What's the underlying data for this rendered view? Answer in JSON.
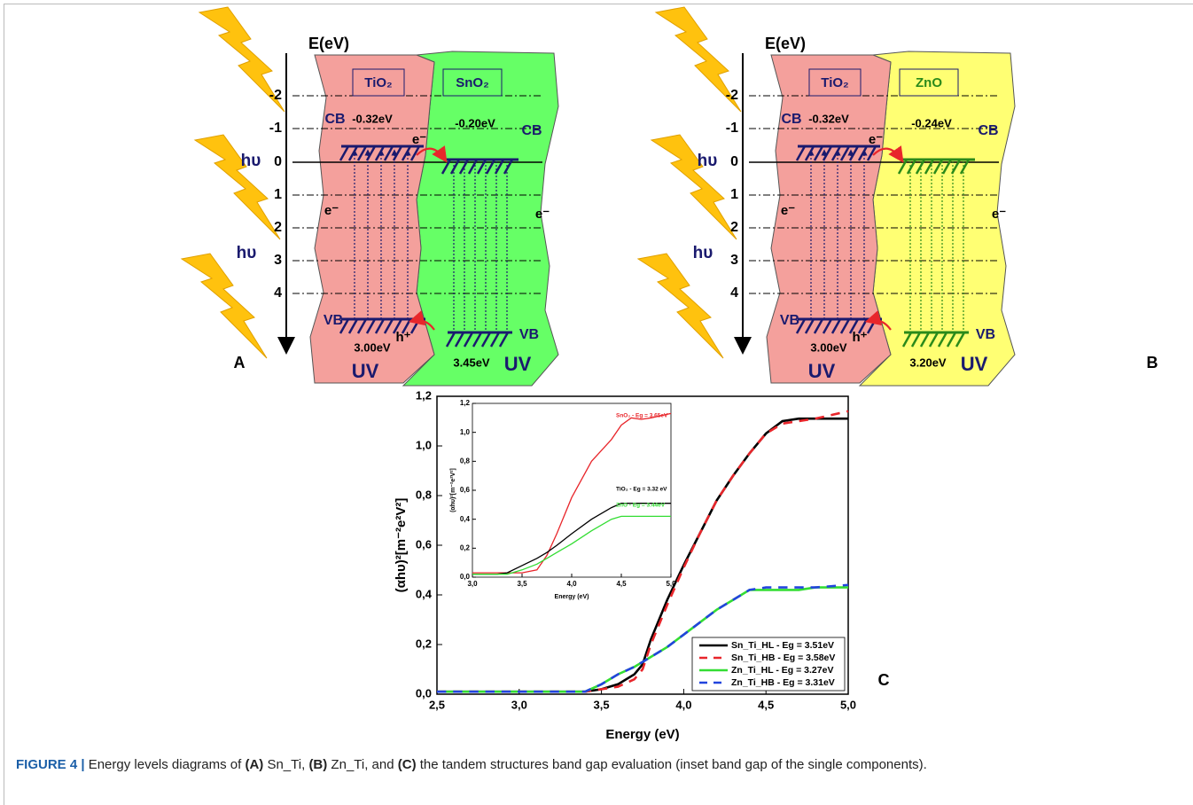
{
  "diagrams": [
    {
      "axis_label": "E(eV)",
      "levels": [
        "-2",
        "-1",
        "0",
        "1",
        "2",
        "3",
        "4"
      ],
      "photon_labels": [
        "hυ",
        "hυ"
      ],
      "left_material": "TiO₂",
      "right_material": "SnO₂",
      "left_cb": "CB",
      "left_cb_energy": "-0.32eV",
      "right_cb": "CB",
      "right_cb_energy": "-0.20eV",
      "transfer_electron": "e⁻",
      "left_electron": "e⁻",
      "right_electron": "e⁻",
      "left_vb": "VB",
      "left_vb_energy": "3.00eV",
      "hole": "h⁺",
      "right_vb": "VB",
      "right_vb_energy": "3.45eV",
      "left_uv": "UV",
      "right_uv": "UV",
      "panel": "A",
      "shape_color": "#66ff66",
      "band_color": "#1a1a6e"
    },
    {
      "axis_label": "E(eV)",
      "levels": [
        "-2",
        "-1",
        "0",
        "1",
        "2",
        "3",
        "4"
      ],
      "photon_labels": [
        "hυ",
        "hυ"
      ],
      "left_material": "TiO₂",
      "right_material": "ZnO",
      "left_cb": "CB",
      "left_cb_energy": "-0.32eV",
      "right_cb": "CB",
      "right_cb_energy": "-0.24eV",
      "transfer_electron": "e⁻",
      "left_electron": "e⁻",
      "right_electron": "e⁻",
      "left_vb": "VB",
      "left_vb_energy": "3.00eV",
      "hole": "h⁺",
      "right_vb": "VB",
      "right_vb_energy": "3.20eV",
      "left_uv": "UV",
      "right_uv": "UV",
      "panel": "B",
      "shape_color": "#ffff73",
      "band_color": "#2a8a1a"
    }
  ],
  "chart_data": [
    {
      "type": "line",
      "panel": "C",
      "xlabel": "Energy (eV)",
      "ylabel": "(αhυ)²[m⁻²e²V²]",
      "xlim": [
        2.5,
        5.0
      ],
      "xticks": [
        {
          "value": 2.5,
          "label": "2,5"
        },
        {
          "value": 3.0,
          "label": "3,0"
        },
        {
          "value": 3.5,
          "label": "3,5"
        },
        {
          "value": 4.0,
          "label": "4,0"
        },
        {
          "value": 4.5,
          "label": "4,5"
        },
        {
          "value": 5.0,
          "label": "5,0"
        }
      ],
      "ylim": [
        0,
        1.2
      ],
      "yticks": [
        {
          "value": 0,
          "label": "0,0"
        },
        {
          "value": 0.2,
          "label": "0,2"
        },
        {
          "value": 0.4,
          "label": "0,4"
        },
        {
          "value": 0.6,
          "label": "0,6"
        },
        {
          "value": 0.8,
          "label": "0,8"
        },
        {
          "value": 1.0,
          "label": "1,0"
        },
        {
          "value": 1.2,
          "label": "1,2"
        }
      ],
      "legend": "lower right",
      "x": [
        2.5,
        2.75,
        3.0,
        3.25,
        3.4,
        3.5,
        3.6,
        3.7,
        3.75,
        3.8,
        3.9,
        4.0,
        4.1,
        4.2,
        4.3,
        4.4,
        4.5,
        4.6,
        4.7,
        4.8,
        5.0
      ],
      "series": [
        {
          "name": "Sn_Ti_HL - Eg = 3.51eV",
          "color": "#000000",
          "dashed": false,
          "values": [
            0.01,
            0.01,
            0.01,
            0.01,
            0.01,
            0.02,
            0.04,
            0.08,
            0.12,
            0.22,
            0.38,
            0.52,
            0.65,
            0.78,
            0.88,
            0.97,
            1.05,
            1.1,
            1.11,
            1.11,
            1.11
          ]
        },
        {
          "name": "Sn_Ti_HB - Eg = 3.58eV",
          "color": "#e8262b",
          "dashed": true,
          "values": [
            0.01,
            0.01,
            0.01,
            0.01,
            0.01,
            0.02,
            0.03,
            0.06,
            0.1,
            0.2,
            0.36,
            0.51,
            0.65,
            0.78,
            0.88,
            0.97,
            1.05,
            1.09,
            1.1,
            1.11,
            1.14
          ]
        },
        {
          "name": "Zn_Ti_HL - Eg = 3.27eV",
          "color": "#33dd33",
          "dashed": false,
          "values": [
            0.01,
            0.01,
            0.01,
            0.01,
            0.01,
            0.04,
            0.08,
            0.11,
            0.13,
            0.15,
            0.19,
            0.24,
            0.29,
            0.34,
            0.38,
            0.42,
            0.42,
            0.42,
            0.42,
            0.43,
            0.43
          ]
        },
        {
          "name": "Zn_Ti_HB - Eg = 3.31eV",
          "color": "#2244dd",
          "dashed": true,
          "values": [
            0.01,
            0.01,
            0.01,
            0.01,
            0.01,
            0.04,
            0.08,
            0.11,
            0.13,
            0.15,
            0.19,
            0.24,
            0.29,
            0.34,
            0.38,
            0.42,
            0.43,
            0.43,
            0.43,
            0.43,
            0.44
          ]
        }
      ]
    },
    {
      "type": "line",
      "xlabel": "Energy (eV)",
      "ylabel": "(αhυ)²[m⁻²e²V²]",
      "xlim": [
        3.0,
        5.0
      ],
      "xticks": [
        {
          "value": 3.0,
          "label": "3,0"
        },
        {
          "value": 3.5,
          "label": "3,5"
        },
        {
          "value": 4.0,
          "label": "4,0"
        },
        {
          "value": 4.5,
          "label": "4,5"
        },
        {
          "value": 5.0,
          "label": "5,0"
        }
      ],
      "ylim": [
        0,
        1.2
      ],
      "yticks": [
        {
          "value": 0,
          "label": "0,0"
        },
        {
          "value": 0.2,
          "label": "0,2"
        },
        {
          "value": 0.4,
          "label": "0,4"
        },
        {
          "value": 0.6,
          "label": "0,6"
        },
        {
          "value": 0.8,
          "label": "0,8"
        },
        {
          "value": 1.0,
          "label": "1,0"
        },
        {
          "value": 1.2,
          "label": "1,2"
        }
      ],
      "x": [
        3.0,
        3.25,
        3.35,
        3.5,
        3.65,
        3.75,
        3.85,
        4.0,
        4.2,
        4.4,
        4.5,
        4.6,
        4.7,
        4.8,
        5.0
      ],
      "series": [
        {
          "name": "SnO₂ - Eg = 3.65eV",
          "color": "#e8262b",
          "dashed": false,
          "values": [
            0.03,
            0.03,
            0.03,
            0.03,
            0.05,
            0.15,
            0.3,
            0.55,
            0.8,
            0.95,
            1.05,
            1.1,
            1.09,
            1.1,
            1.13
          ]
        },
        {
          "name": "TiO₂ - Eg = 3.32 eV",
          "color": "#000000",
          "dashed": false,
          "values": [
            0.02,
            0.02,
            0.03,
            0.08,
            0.13,
            0.17,
            0.22,
            0.3,
            0.4,
            0.48,
            0.51,
            0.51,
            0.51,
            0.51,
            0.51
          ]
        },
        {
          "name": "ZnO - Eg = 3.44eV",
          "color": "#33dd33",
          "dashed": false,
          "values": [
            0.02,
            0.02,
            0.02,
            0.05,
            0.09,
            0.13,
            0.17,
            0.23,
            0.32,
            0.4,
            0.42,
            0.42,
            0.42,
            0.42,
            0.42
          ]
        }
      ]
    }
  ],
  "caption": {
    "label": "FIGURE 4 |",
    "segments": [
      " Energy levels diagrams of ",
      "(A)",
      " Sn_Ti, ",
      "(B)",
      " Zn_Ti, and ",
      "(C)",
      " the tandem structures band gap evaluation (inset band gap of the single components)."
    ]
  }
}
